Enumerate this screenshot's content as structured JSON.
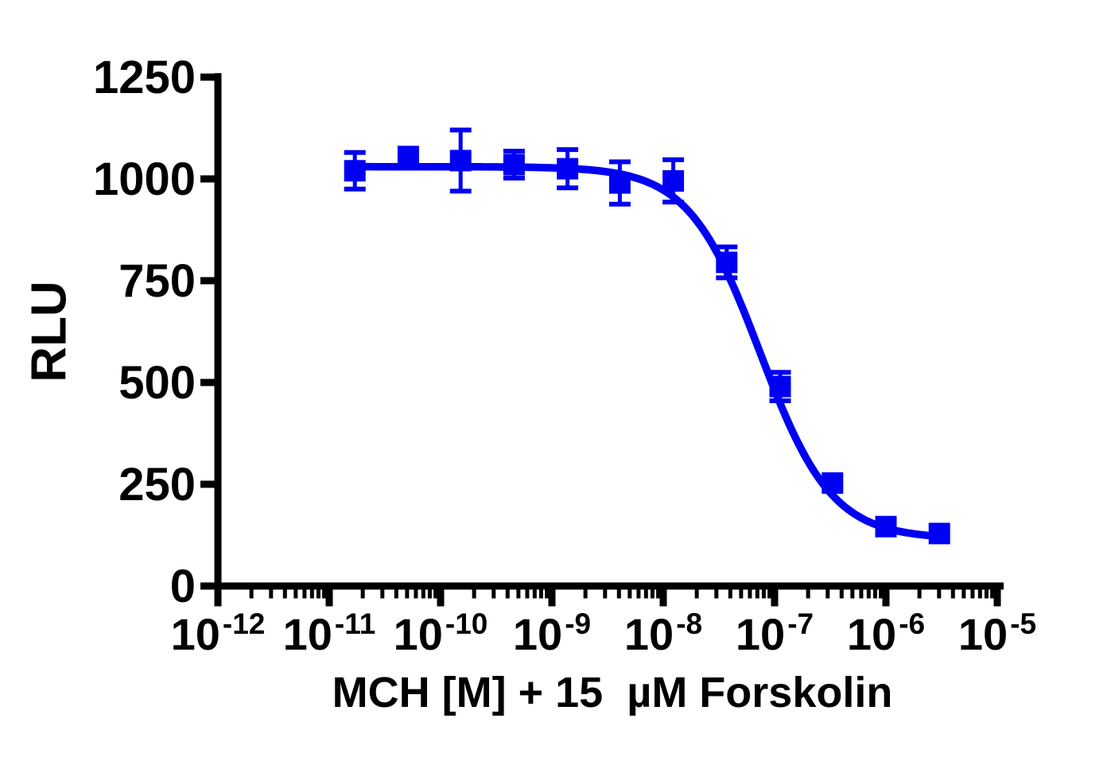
{
  "chart_data": {
    "type": "scatter",
    "subtype": "dose-response-inhibition-curve",
    "title": "",
    "xlabel": "MCH [M] + 15  µM Forskolin",
    "ylabel": "RLU",
    "x_scale": "log10",
    "xlim_log10": [
      -12,
      -5
    ],
    "ylim": [
      0,
      1250
    ],
    "grid": false,
    "legend": "none",
    "background_color": "#FFFFFF",
    "axis_color": "#000000",
    "y_ticks": [
      0,
      250,
      500,
      750,
      1000,
      1250
    ],
    "x_major_ticks": [
      {
        "log10": -12,
        "base": "10",
        "exponent": "-12"
      },
      {
        "log10": -11,
        "base": "10",
        "exponent": "-11"
      },
      {
        "log10": -10,
        "base": "10",
        "exponent": "-10"
      },
      {
        "log10": -9,
        "base": "10",
        "exponent": "-9"
      },
      {
        "log10": -8,
        "base": "10",
        "exponent": "-8"
      },
      {
        "log10": -7,
        "base": "10",
        "exponent": "-7"
      },
      {
        "log10": -6,
        "base": "10",
        "exponent": "-6"
      },
      {
        "log10": -5,
        "base": "10",
        "exponent": "-5"
      }
    ],
    "x_minor_tick_multiples": [
      2,
      3,
      4,
      5,
      6,
      7,
      8,
      9
    ],
    "series": [
      {
        "name": "MCH + 15 µM forskolin",
        "color": "#0000F2",
        "marker": "filled-square",
        "marker_size_px": 27,
        "points": [
          {
            "x_molar": 1.7e-11,
            "x_log10": -10.77,
            "y": 1020,
            "yerr": 45
          },
          {
            "x_molar": 5.1e-11,
            "x_log10": -10.29,
            "y": 1055,
            "yerr": 0
          },
          {
            "x_molar": 1.5e-10,
            "x_log10": -9.82,
            "y": 1045,
            "yerr": 75
          },
          {
            "x_molar": 4.6e-10,
            "x_log10": -9.34,
            "y": 1035,
            "yerr": 33
          },
          {
            "x_molar": 1.4e-09,
            "x_log10": -8.86,
            "y": 1025,
            "yerr": 47
          },
          {
            "x_molar": 4.1e-09,
            "x_log10": -8.39,
            "y": 990,
            "yerr": 52
          },
          {
            "x_molar": 1.2e-08,
            "x_log10": -7.91,
            "y": 995,
            "yerr": 52
          },
          {
            "x_molar": 3.7e-08,
            "x_log10": -7.43,
            "y": 795,
            "yerr": 38
          },
          {
            "x_molar": 1.1e-07,
            "x_log10": -6.95,
            "y": 490,
            "yerr": 35
          },
          {
            "x_molar": 3.3e-07,
            "x_log10": -6.48,
            "y": 253,
            "yerr": 0
          },
          {
            "x_molar": 1e-06,
            "x_log10": -6.0,
            "y": 146,
            "yerr": 0
          },
          {
            "x_molar": 3e-06,
            "x_log10": -5.52,
            "y": 129,
            "yerr": 0
          }
        ],
        "fit_curve": {
          "model": "four-parameter-logistic",
          "top": 1030,
          "bottom": 116,
          "log10_ic50": -7.13,
          "hill_slope": 1.35,
          "x_range_log10": [
            -10.77,
            -5.52
          ]
        }
      }
    ]
  }
}
